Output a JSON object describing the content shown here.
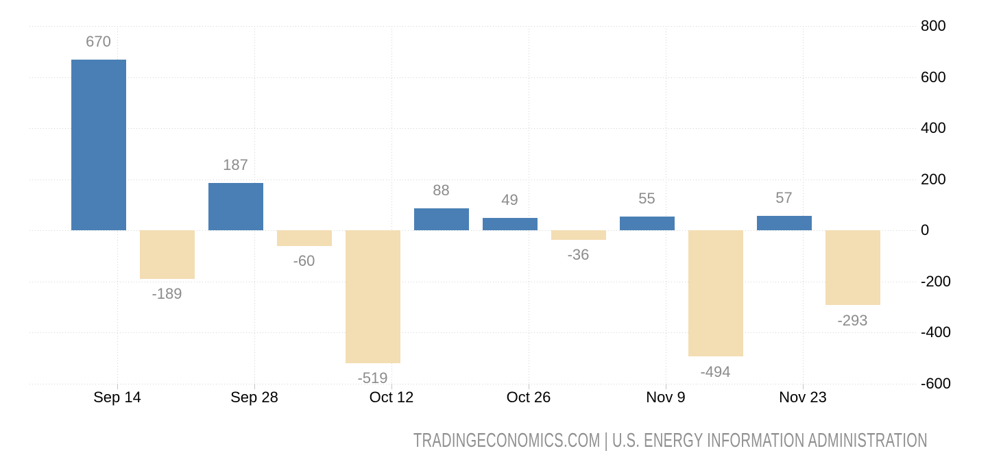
{
  "chart_data": {
    "type": "bar",
    "title": "",
    "xlabel": "",
    "ylabel": "",
    "x_tick_labels": [
      "Sep 14",
      "Sep 28",
      "Oct 12",
      "Oct 26",
      "Nov 9",
      "Nov 23"
    ],
    "values": [
      670,
      -189,
      187,
      -60,
      -519,
      88,
      49,
      -36,
      55,
      -494,
      57,
      -293
    ],
    "data_labels": [
      "670",
      "-189",
      "187",
      "-60",
      "-519",
      "88",
      "49",
      "-36",
      "55",
      "-494",
      "57",
      "-293"
    ],
    "yticks": [
      800,
      600,
      400,
      200,
      0,
      -200,
      -400,
      -600
    ],
    "ylim": [
      -600,
      800
    ],
    "bars_per_tick": 2,
    "grid": "dotted",
    "legend": "none",
    "colors": {
      "positive_bar": "#4A7FB5",
      "negative_bar": "#F3DDB2",
      "gridline": "#D2D2D2",
      "tick_mark": "#C4C4C4",
      "data_label": "#8B8B8B",
      "axis_label": "#000000",
      "footer_text": "#8F8F8F",
      "background": "#FFFFFF"
    }
  },
  "footer": {
    "text": "TRADINGECONOMICS.COM | U.S. ENERGY INFORMATION ADMINISTRATION"
  }
}
